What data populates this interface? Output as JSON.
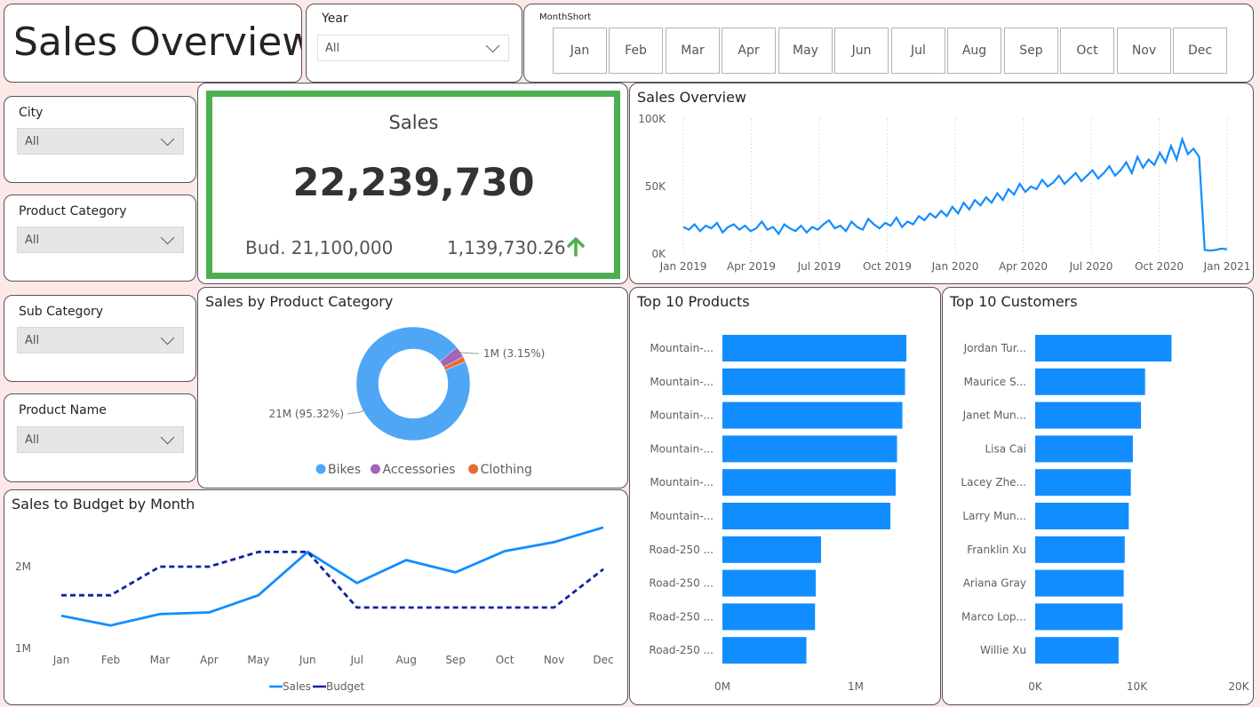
{
  "title": "Sales Overview",
  "year_slicer": {
    "label": "Year",
    "value": "All"
  },
  "month_slicer": {
    "label": "MonthShort",
    "months": [
      "Jan",
      "Feb",
      "Mar",
      "Apr",
      "May",
      "Jun",
      "Jul",
      "Aug",
      "Sep",
      "Oct",
      "Nov",
      "Dec"
    ]
  },
  "slicers": [
    {
      "label": "City",
      "value": "All"
    },
    {
      "label": "Product Category",
      "value": "All"
    },
    {
      "label": "Sub Category",
      "value": "All"
    },
    {
      "label": "Product Name",
      "value": "All"
    }
  ],
  "kpi": {
    "title": "Sales",
    "value": "22,239,730",
    "budget": "Bud. 21,100,000",
    "variance": "1,139,730.26",
    "accent": "#4caf50",
    "arrow_color": "#4caf50",
    "arrow_icon": "arrow-up-icon"
  },
  "colors": {
    "primary": "#118dff",
    "budget": "#12239e",
    "bikes": "#4ea6f5",
    "accessories": "#a066bb",
    "clothing": "#e66c37"
  },
  "chart_data": [
    {
      "id": "sales_overview",
      "type": "line",
      "title": "Sales Overview",
      "x_tick_labels": [
        "Jan 2019",
        "Apr 2019",
        "Jul 2019",
        "Oct 2019",
        "Jan 2020",
        "Apr 2020",
        "Jul 2020",
        "Oct 2020",
        "Jan 2021"
      ],
      "y_tick_labels": [
        "100K",
        "50K",
        "0K"
      ],
      "ylim": [
        0,
        100000
      ],
      "grid": "vertical-dotted",
      "series": [
        {
          "values": [
            20000,
            18000,
            22000,
            17000,
            21000,
            19000,
            23000,
            16000,
            20000,
            22000,
            18000,
            21000,
            17000,
            19000,
            24000,
            18000,
            20000,
            15000,
            22000,
            19000,
            17000,
            21000,
            16000,
            20000,
            18000,
            22000,
            25000,
            19000,
            21000,
            17000,
            24000,
            20000,
            18000,
            26000,
            22000,
            19000,
            23000,
            21000,
            27000,
            20000,
            24000,
            22000,
            28000,
            25000,
            30000,
            27000,
            32000,
            28000,
            35000,
            30000,
            38000,
            33000,
            40000,
            36000,
            42000,
            38000,
            45000,
            40000,
            48000,
            44000,
            52000,
            46000,
            50000,
            48000,
            55000,
            50000,
            53000,
            58000,
            52000,
            56000,
            60000,
            54000,
            58000,
            62000,
            56000,
            60000,
            65000,
            58000,
            62000,
            68000,
            60000,
            72000,
            64000,
            70000,
            66000,
            75000,
            68000,
            80000,
            70000,
            85000,
            74000,
            78000,
            72000,
            3000,
            2500,
            3000,
            4000,
            3500
          ]
        }
      ]
    },
    {
      "id": "sales_by_category",
      "type": "pie",
      "title": "Sales by Product Category",
      "slices": [
        {
          "name": "Bikes",
          "value": 95.32,
          "label": "21M (95.32%)"
        },
        {
          "name": "Accessories",
          "value": 3.15,
          "label": "1M (3.15%)"
        },
        {
          "name": "Clothing",
          "value": 1.53
        }
      ],
      "legend": "bottom"
    },
    {
      "id": "sales_to_budget",
      "type": "line",
      "title": "Sales to Budget by Month",
      "categories": [
        "Jan",
        "Feb",
        "Mar",
        "Apr",
        "May",
        "Jun",
        "Jul",
        "Aug",
        "Sep",
        "Oct",
        "Nov",
        "Dec"
      ],
      "y_tick_labels": [
        "2M",
        "1M"
      ],
      "ylim": [
        1000000,
        2500000
      ],
      "series": [
        {
          "name": "Sales",
          "values": [
            1400000,
            1280000,
            1420000,
            1440000,
            1650000,
            2180000,
            1800000,
            2080000,
            1930000,
            2190000,
            2300000,
            2480000
          ]
        },
        {
          "name": "Budget",
          "values": [
            1650000,
            1650000,
            2000000,
            2000000,
            2180000,
            2180000,
            1500000,
            1500000,
            1500000,
            1500000,
            1500000,
            1970000
          ]
        }
      ],
      "legend": "bottom"
    },
    {
      "id": "top_products",
      "type": "bar",
      "title": "Top 10 Products",
      "categories": [
        "Mountain-...",
        "Mountain-...",
        "Mountain-...",
        "Mountain-...",
        "Mountain-...",
        "Mountain-...",
        "Road-250 ...",
        "Road-250 ...",
        "Road-250 ...",
        "Road-250 ..."
      ],
      "values": [
        1380000,
        1370000,
        1350000,
        1310000,
        1300000,
        1260000,
        740000,
        700000,
        695000,
        630000
      ],
      "x_tick_labels": [
        "0M",
        "1M"
      ],
      "xlim": [
        0,
        1500000
      ]
    },
    {
      "id": "top_customers",
      "type": "bar",
      "title": "Top 10 Customers",
      "categories": [
        "Jordan Tur...",
        "Maurice S...",
        "Janet Mun...",
        "Lisa Cai",
        "Lacey Zhe...",
        "Larry Mun...",
        "Franklin Xu",
        "Ariana Gray",
        "Marco Lop...",
        "Willie Xu"
      ],
      "values": [
        13400,
        10800,
        10400,
        9600,
        9400,
        9200,
        8800,
        8700,
        8600,
        8200
      ],
      "x_tick_labels": [
        "0K",
        "10K",
        "20K"
      ],
      "xlim": [
        0,
        20000
      ]
    }
  ]
}
